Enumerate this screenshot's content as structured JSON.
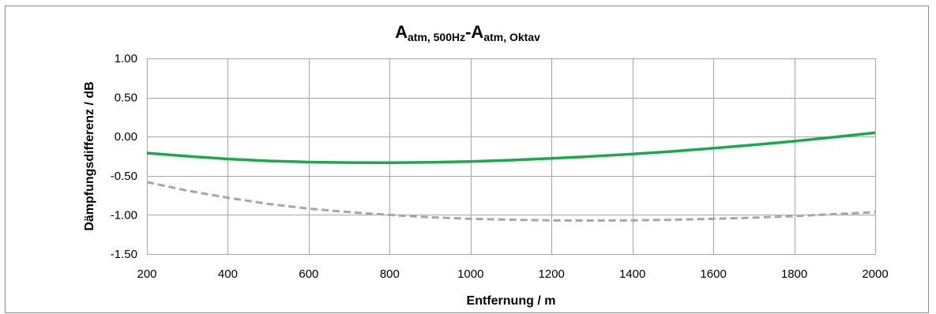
{
  "chart_data": {
    "type": "line",
    "title": {
      "parts": [
        {
          "text": "A",
          "sub": false
        },
        {
          "text": "atm, 500Hz",
          "sub": true
        },
        {
          "text": "-A",
          "sub": false
        },
        {
          "text": "atm, Oktav",
          "sub": true
        }
      ]
    },
    "xlabel": "Entfernung / m",
    "ylabel": "Dämpfungsdifferenz / dB",
    "xlim": [
      200,
      2000
    ],
    "ylim": [
      -1.5,
      1.0
    ],
    "x_ticks": [
      200,
      400,
      600,
      800,
      1000,
      1200,
      1400,
      1600,
      1800,
      2000
    ],
    "x_tick_labels": [
      "200",
      "400",
      "600",
      "800",
      "1000",
      "1200",
      "1400",
      "1600",
      "1800",
      "2000"
    ],
    "y_ticks": [
      1.0,
      0.5,
      0.0,
      -0.5,
      -1.0,
      -1.5
    ],
    "y_tick_labels": [
      "1.00",
      "0.50",
      "0.00",
      "-0.50",
      "-1.00",
      "-1.50"
    ],
    "grid": true,
    "legend": "none",
    "series": [
      {
        "color": "#1aaa4b",
        "style": "solid",
        "x": [
          200,
          300,
          400,
          500,
          600,
          700,
          800,
          900,
          1000,
          1100,
          1200,
          1300,
          1400,
          1500,
          1600,
          1700,
          1800,
          1900,
          2000
        ],
        "values": [
          -0.21,
          -0.25,
          -0.285,
          -0.31,
          -0.325,
          -0.332,
          -0.333,
          -0.328,
          -0.318,
          -0.3,
          -0.278,
          -0.252,
          -0.222,
          -0.188,
          -0.148,
          -0.105,
          -0.058,
          -0.005,
          0.05
        ]
      },
      {
        "color": "#a6a6a6",
        "style": "dashed",
        "x": [
          200,
          300,
          400,
          500,
          600,
          700,
          800,
          900,
          1000,
          1100,
          1200,
          1300,
          1400,
          1500,
          1600,
          1700,
          1800,
          1900,
          2000
        ],
        "values": [
          -0.58,
          -0.69,
          -0.78,
          -0.86,
          -0.92,
          -0.965,
          -1.0,
          -1.03,
          -1.05,
          -1.062,
          -1.07,
          -1.072,
          -1.07,
          -1.062,
          -1.05,
          -1.035,
          -1.015,
          -0.99,
          -0.965
        ]
      }
    ]
  }
}
